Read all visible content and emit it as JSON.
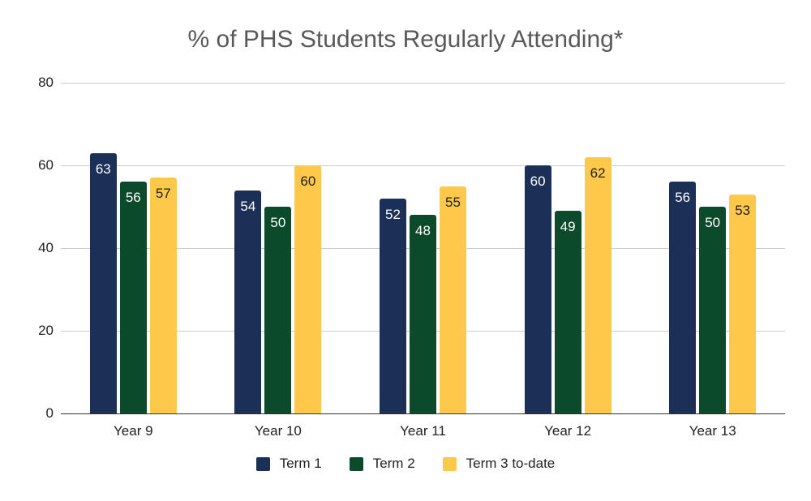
{
  "chart_data": {
    "type": "bar",
    "title": "% of PHS Students Regularly Attending*",
    "categories": [
      "Year 9",
      "Year 10",
      "Year 11",
      "Year 12",
      "Year 13"
    ],
    "series": [
      {
        "name": "Term 1",
        "color": "#1b2f57",
        "values": [
          63,
          54,
          52,
          60,
          56
        ]
      },
      {
        "name": "Term 2",
        "color": "#0b4a2b",
        "values": [
          56,
          50,
          48,
          49,
          50
        ]
      },
      {
        "name": "Term 3 to-date",
        "color": "#fec84a",
        "values": [
          57,
          60,
          55,
          62,
          53
        ]
      }
    ],
    "yticks": [
      0,
      20,
      40,
      60,
      80
    ],
    "ylim": [
      0,
      80
    ],
    "xlabel": "",
    "ylabel": "",
    "grid": true,
    "legend_position": "bottom"
  }
}
